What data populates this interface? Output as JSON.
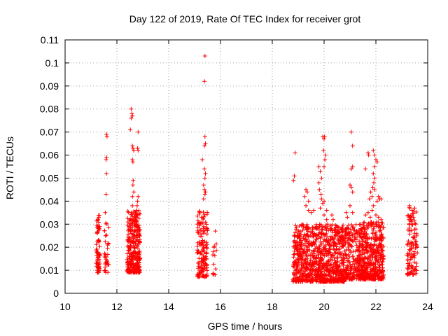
{
  "chart_data": {
    "type": "scatter",
    "title": "Day 122 of 2019, Rate Of TEC Index for receiver grot",
    "xlabel": "GPS time / hours",
    "ylabel": "ROTI / TECUs",
    "xlim": [
      10,
      24
    ],
    "ylim": [
      0,
      0.11
    ],
    "xticks": [
      10,
      12,
      14,
      16,
      18,
      20,
      22,
      24
    ],
    "yticks": [
      0,
      0.01,
      0.02,
      0.03,
      0.04,
      0.05,
      0.06,
      0.07,
      0.08,
      0.09,
      0.1,
      0.11
    ],
    "grid": true,
    "marker": "+",
    "color": "#ff0000",
    "clusters": [
      {
        "x": [
          11.2,
          11.35
        ],
        "ylo": 0.009,
        "yhi": 0.034,
        "n": 70
      },
      {
        "x": [
          11.5,
          11.7
        ],
        "ylo": 0.009,
        "yhi": 0.031,
        "n": 35
      },
      {
        "x": [
          12.4,
          12.9
        ],
        "ylo": 0.009,
        "yhi": 0.036,
        "n": 320
      },
      {
        "x": [
          15.1,
          15.5
        ],
        "ylo": 0.007,
        "yhi": 0.037,
        "n": 150
      },
      {
        "x": [
          15.7,
          15.85
        ],
        "ylo": 0.008,
        "yhi": 0.027,
        "n": 12
      },
      {
        "x": [
          18.8,
          20.8
        ],
        "ylo": 0.005,
        "yhi": 0.03,
        "n": 900
      },
      {
        "x": [
          20.8,
          21.3
        ],
        "ylo": 0.006,
        "yhi": 0.03,
        "n": 160
      },
      {
        "x": [
          21.3,
          22.3
        ],
        "ylo": 0.006,
        "yhi": 0.031,
        "n": 520
      },
      {
        "x": [
          23.2,
          23.6
        ],
        "ylo": 0.008,
        "yhi": 0.038,
        "n": 110
      }
    ],
    "points": [
      [
        11.3,
        0.033
      ],
      [
        11.6,
        0.069
      ],
      [
        11.62,
        0.068
      ],
      [
        11.6,
        0.059
      ],
      [
        11.58,
        0.058
      ],
      [
        11.6,
        0.052
      ],
      [
        11.58,
        0.043
      ],
      [
        11.55,
        0.035
      ],
      [
        12.55,
        0.08
      ],
      [
        12.58,
        0.078
      ],
      [
        12.55,
        0.076
      ],
      [
        12.6,
        0.077
      ],
      [
        12.52,
        0.071
      ],
      [
        12.6,
        0.064
      ],
      [
        12.62,
        0.063
      ],
      [
        12.65,
        0.062
      ],
      [
        12.6,
        0.058
      ],
      [
        12.62,
        0.057
      ],
      [
        12.82,
        0.07
      ],
      [
        12.8,
        0.063
      ],
      [
        12.82,
        0.062
      ],
      [
        12.63,
        0.049
      ],
      [
        12.62,
        0.047
      ],
      [
        12.65,
        0.044
      ],
      [
        12.6,
        0.042
      ],
      [
        12.82,
        0.042
      ],
      [
        12.8,
        0.04
      ],
      [
        12.78,
        0.038
      ],
      [
        12.75,
        0.036
      ],
      [
        12.8,
        0.034
      ],
      [
        12.6,
        0.038
      ],
      [
        15.4,
        0.103
      ],
      [
        15.38,
        0.092
      ],
      [
        15.4,
        0.068
      ],
      [
        15.42,
        0.065
      ],
      [
        15.38,
        0.064
      ],
      [
        15.3,
        0.058
      ],
      [
        15.38,
        0.054
      ],
      [
        15.42,
        0.052
      ],
      [
        15.4,
        0.05
      ],
      [
        15.35,
        0.047
      ],
      [
        15.38,
        0.045
      ],
      [
        15.42,
        0.044
      ],
      [
        15.4,
        0.043
      ],
      [
        15.35,
        0.041
      ],
      [
        15.8,
        0.027
      ],
      [
        15.75,
        0.02
      ],
      [
        18.88,
        0.061
      ],
      [
        18.85,
        0.051
      ],
      [
        18.82,
        0.049
      ],
      [
        19.3,
        0.045
      ],
      [
        19.35,
        0.044
      ],
      [
        19.25,
        0.042
      ],
      [
        19.4,
        0.04
      ],
      [
        19.3,
        0.038
      ],
      [
        19.4,
        0.036
      ],
      [
        19.5,
        0.035
      ],
      [
        19.6,
        0.036
      ],
      [
        19.8,
        0.055
      ],
      [
        19.85,
        0.053
      ],
      [
        19.9,
        0.05
      ],
      [
        19.8,
        0.048
      ],
      [
        19.95,
        0.068
      ],
      [
        20.0,
        0.067
      ],
      [
        20.02,
        0.068
      ],
      [
        19.98,
        0.062
      ],
      [
        20.05,
        0.06
      ],
      [
        20.03,
        0.058
      ],
      [
        20.0,
        0.055
      ],
      [
        19.82,
        0.045
      ],
      [
        19.88,
        0.043
      ],
      [
        19.9,
        0.041
      ],
      [
        19.95,
        0.039
      ],
      [
        20.0,
        0.04
      ],
      [
        19.85,
        0.037
      ],
      [
        20.1,
        0.036
      ],
      [
        20.0,
        0.034
      ],
      [
        20.1,
        0.032
      ],
      [
        20.3,
        0.034
      ],
      [
        20.35,
        0.032
      ],
      [
        21.05,
        0.07
      ],
      [
        21.1,
        0.064
      ],
      [
        21.1,
        0.055
      ],
      [
        21.05,
        0.054
      ],
      [
        21.0,
        0.047
      ],
      [
        21.05,
        0.046
      ],
      [
        21.1,
        0.044
      ],
      [
        20.85,
        0.035
      ],
      [
        20.9,
        0.033
      ],
      [
        21.1,
        0.035
      ],
      [
        21.0,
        0.038
      ],
      [
        21.7,
        0.061
      ],
      [
        21.72,
        0.06
      ],
      [
        21.6,
        0.054
      ],
      [
        21.9,
        0.062
      ],
      [
        21.95,
        0.06
      ],
      [
        22.0,
        0.058
      ],
      [
        22.05,
        0.057
      ],
      [
        21.95,
        0.055
      ],
      [
        21.9,
        0.052
      ],
      [
        21.95,
        0.05
      ],
      [
        21.92,
        0.048
      ],
      [
        21.88,
        0.046
      ],
      [
        21.95,
        0.045
      ],
      [
        21.8,
        0.044
      ],
      [
        21.85,
        0.042
      ],
      [
        21.75,
        0.041
      ],
      [
        22.1,
        0.042
      ],
      [
        22.15,
        0.041
      ],
      [
        22.2,
        0.041
      ],
      [
        22.05,
        0.04
      ],
      [
        21.9,
        0.038
      ],
      [
        21.85,
        0.036
      ],
      [
        21.7,
        0.035
      ],
      [
        21.78,
        0.033
      ],
      [
        22.0,
        0.034
      ],
      [
        22.1,
        0.033
      ],
      [
        22.2,
        0.032
      ],
      [
        21.6,
        0.034
      ],
      [
        23.3,
        0.038
      ],
      [
        23.5,
        0.037
      ],
      [
        23.4,
        0.036
      ],
      [
        23.35,
        0.034
      ],
      [
        23.45,
        0.033
      ]
    ]
  }
}
